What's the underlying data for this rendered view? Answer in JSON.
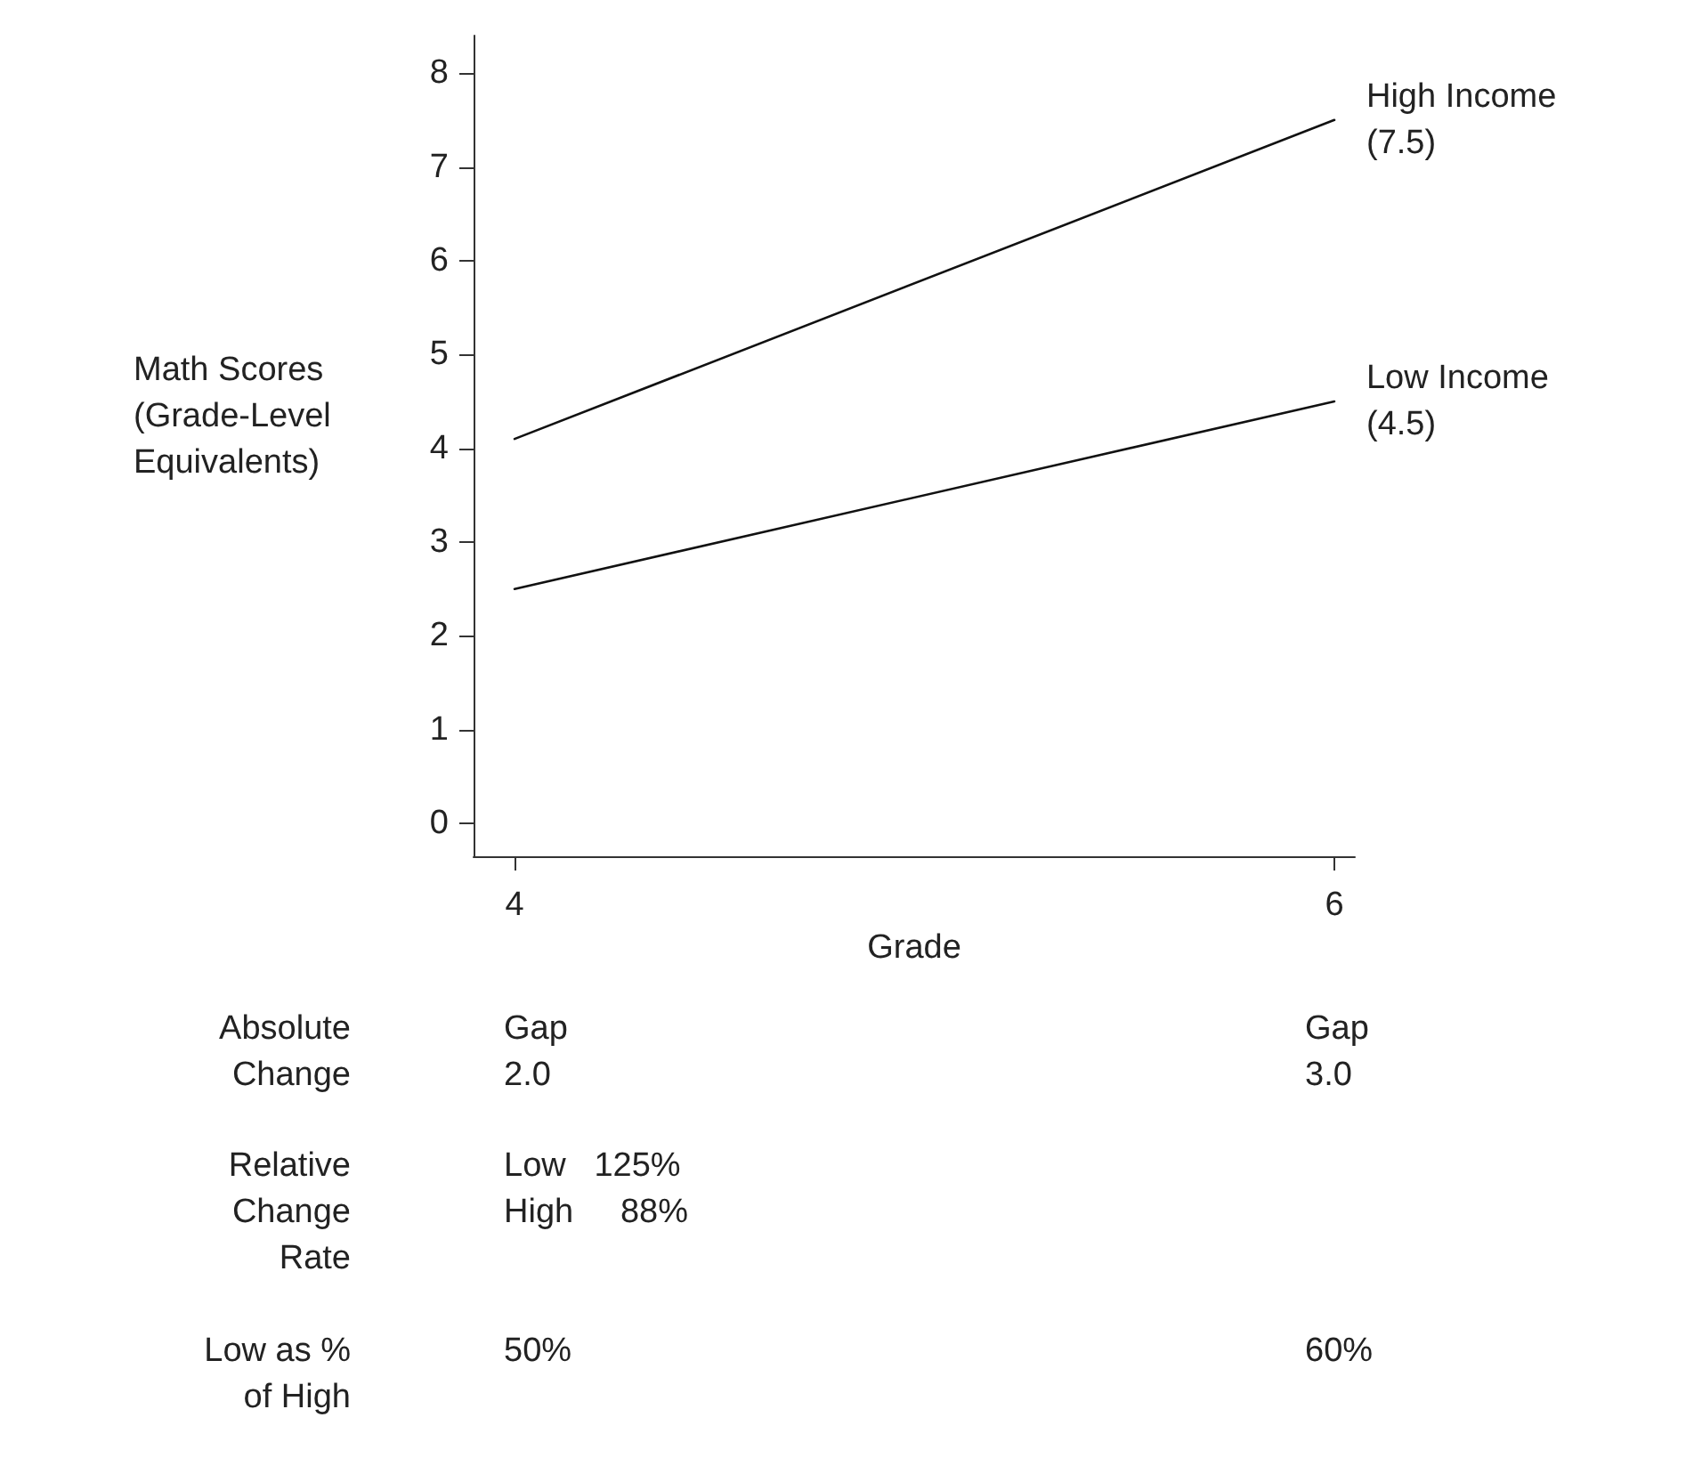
{
  "chart_data": {
    "type": "line",
    "xlabel": "Grade",
    "ylabel": "Math Scores (Grade-Level Equivalents)",
    "x": [
      4,
      6
    ],
    "xlim": [
      3.9,
      6.05
    ],
    "xticks": [
      4,
      6
    ],
    "ylim": [
      -0.35,
      8.4
    ],
    "yticks": [
      0,
      1,
      2,
      3,
      4,
      5,
      6,
      7,
      8
    ],
    "series": [
      {
        "name": "High Income (7.5)",
        "color": "#111111",
        "values": [
          4.1,
          7.5
        ]
      },
      {
        "name": "Low Income (4.5)",
        "color": "#111111",
        "values": [
          2.5,
          4.5
        ]
      }
    ],
    "grid": false,
    "legend": false,
    "marker": "none",
    "line_style": "solid",
    "annotations": [
      "Absolute\nChange",
      "Gap\n2.0",
      "Gap\n3.0",
      "Relative\nChange\nRate",
      "Low   125%\nHigh     88%",
      "Low as %\nof High",
      "50%",
      "60%"
    ]
  }
}
